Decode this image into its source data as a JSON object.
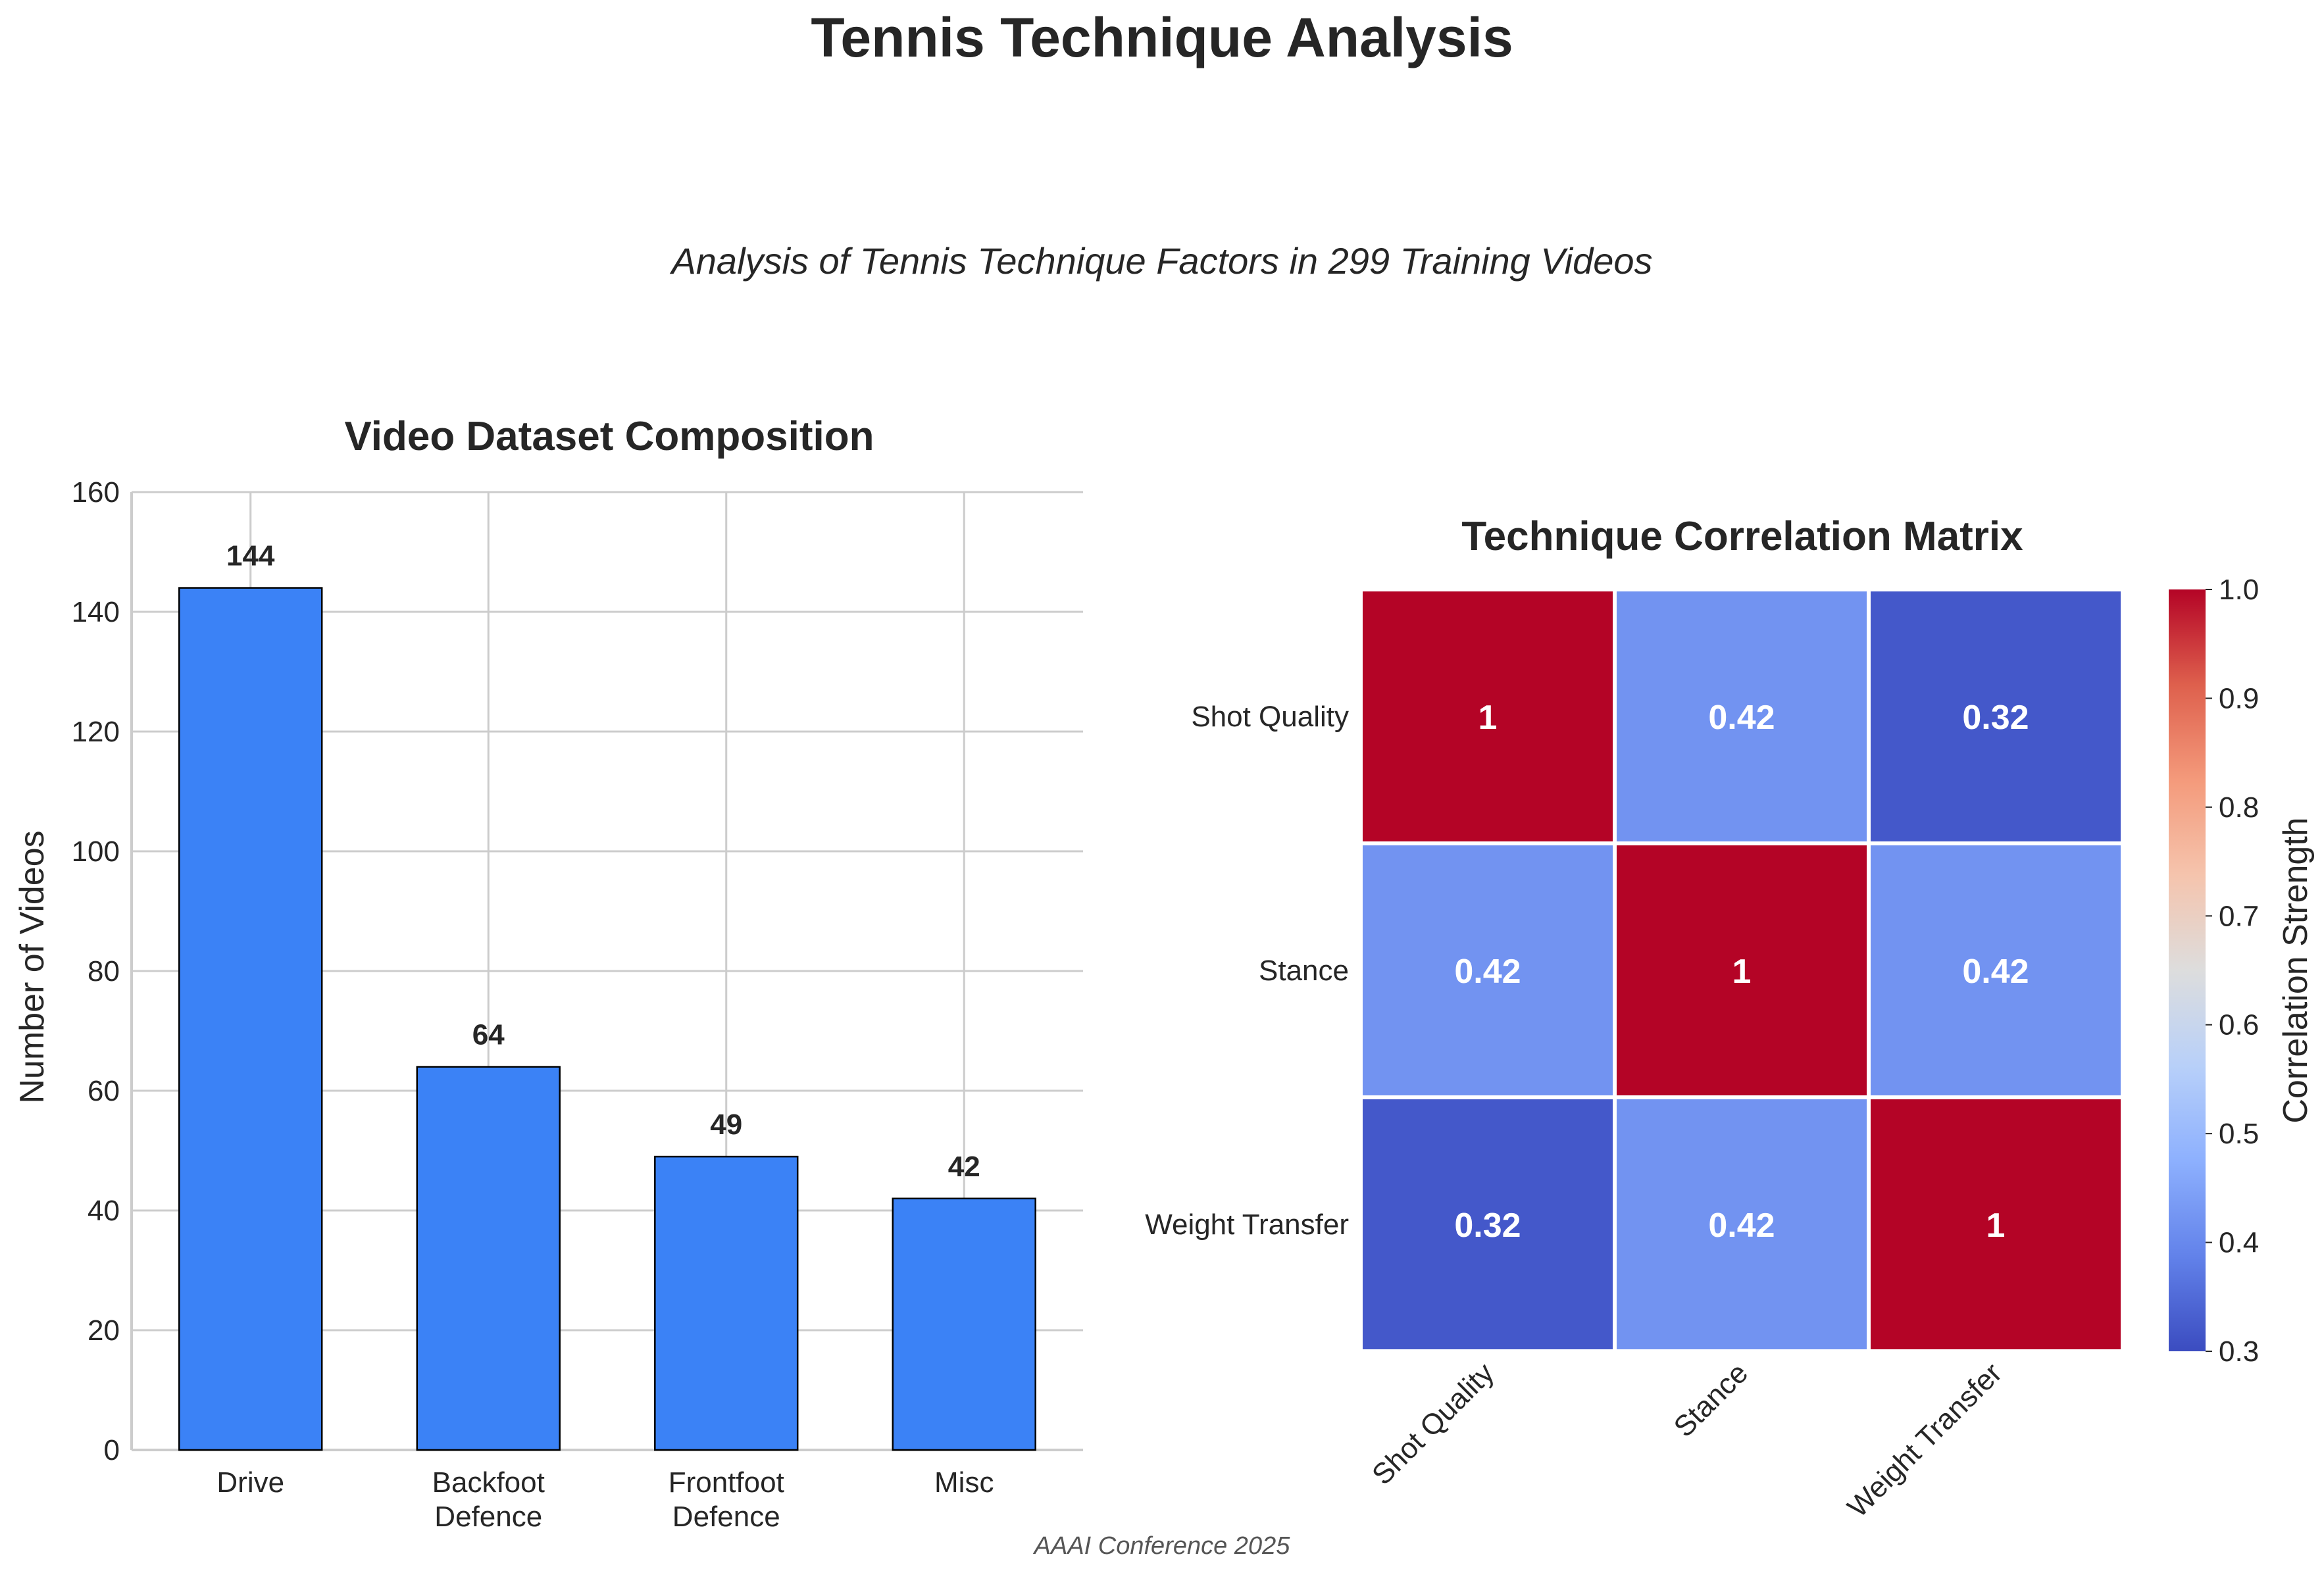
{
  "figure": {
    "title": "Tennis Technique Analysis",
    "subtitle": "Analysis of Tennis Technique Factors in 299 Training Videos",
    "footer": "AAAI Conference 2025"
  },
  "chart_data": [
    {
      "type": "bar",
      "title": "Video Dataset Composition",
      "xlabel": "",
      "ylabel": "Number of Videos",
      "categories": [
        "Drive",
        "Backfoot\nDefence",
        "Frontfoot\nDefence",
        "Misc"
      ],
      "values": [
        144,
        64,
        49,
        42
      ],
      "data_labels": [
        "144",
        "64",
        "49",
        "42"
      ],
      "ylim": [
        0,
        160
      ],
      "yticks": [
        0,
        20,
        40,
        60,
        80,
        100,
        120,
        140,
        160
      ],
      "grid": true,
      "bar_color": "#3b82f6",
      "edge_color": "#000000"
    },
    {
      "type": "heatmap",
      "title": "Technique Correlation Matrix",
      "rows": [
        "Shot Quality",
        "Stance",
        "Weight Transfer"
      ],
      "columns": [
        "Shot Quality",
        "Stance",
        "Weight Transfer"
      ],
      "values": [
        [
          1,
          0.42,
          0.32
        ],
        [
          0.42,
          1,
          0.42
        ],
        [
          0.32,
          0.42,
          1
        ]
      ],
      "cell_labels": [
        [
          "1",
          "0.42",
          "0.32"
        ],
        [
          "0.42",
          "1",
          "0.42"
        ],
        [
          "0.32",
          "0.42",
          "1"
        ]
      ],
      "colormap": "coolwarm",
      "vmin": 0.3,
      "vmax": 1.0,
      "colorbar_label": "Correlation Strength",
      "colorbar_ticks": [
        0.3,
        0.4,
        0.5,
        0.6,
        0.7,
        0.8,
        0.9,
        1.0
      ],
      "colorbar_tick_labels": [
        "0.3",
        "0.4",
        "0.5",
        "0.6",
        "0.7",
        "0.8",
        "0.9",
        "1.0"
      ]
    }
  ]
}
